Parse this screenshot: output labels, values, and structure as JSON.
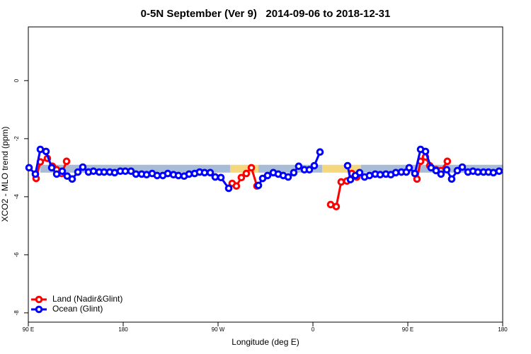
{
  "chart_data": {
    "type": "line",
    "title": "0-5N September (Ver 9)   2014-09-06 to 2018-12-31",
    "x_label": "Longitude (deg E)",
    "y_label": "XCO2 - MLO trend (ppm)",
    "xlim": [
      90,
      540
    ],
    "xticks": [
      {
        "value": 90,
        "label": "90 E"
      },
      180,
      {
        "value": 270,
        "label": "90 W"
      },
      {
        "value": 360,
        "label": "0"
      },
      {
        "value": 450,
        "label": "90 E"
      },
      {
        "value": 540,
        "label": "180"
      }
    ],
    "ylim": [
      -8.32,
      1.85
    ],
    "yticks": [
      -8,
      -6,
      -4,
      -2,
      0
    ],
    "band_ylim": [
      -3.17,
      -2.9
    ],
    "bands": [
      {
        "xlim": [
          101.4,
          281.4
        ],
        "color": "#a8bcd8"
      },
      {
        "xlim": [
          281.4,
          308.3
        ],
        "color": "#f5d77e"
      },
      {
        "xlim": [
          308.3,
          368.7
        ],
        "color": "#a8bcd8"
      },
      {
        "xlim": [
          368.7,
          405.6
        ],
        "color": "#f5d77e"
      },
      {
        "xlim": [
          405.6,
          540
        ],
        "color": "#a8bcd8"
      }
    ],
    "legend": "bottom-left",
    "series": [
      {
        "name": "Land (Nadir&Glint)",
        "color": "#ff0000",
        "x": [
          97.4,
          101.4,
          108.1,
          112.8,
          116.9,
          121.6,
          126.3,
          200,
          283.4,
          287.4,
          292.1,
          296.8,
          301.6,
          306.9,
          380,
          376.8,
          382.1,
          386.8,
          392.2,
          396.9,
          401.6,
          430,
          458.7,
          462.1,
          466.8,
          470.8,
          476.8,
          481.5,
          487.5
        ],
        "values": [
          -3.37,
          -2.8,
          -2.68,
          -2.95,
          -3.07,
          -3.2,
          -2.78,
          null,
          -3.54,
          -3.63,
          -3.34,
          -3.2,
          -3.0,
          -3.63,
          null,
          -4.27,
          -4.34,
          -3.49,
          -3.46,
          -3.2,
          -3.32,
          null,
          -3.39,
          -2.78,
          -2.63,
          -2.93,
          -3.07,
          -3.1,
          -2.78
        ]
      },
      {
        "name": "Ocean (Glint)",
        "color": "#0000ff",
        "x": [
          90.7,
          96.7,
          101.4,
          106.8,
          112.2,
          116.9,
          122.2,
          126.9,
          131.6,
          137.0,
          141.7,
          147.1,
          151.8,
          157.2,
          161.9,
          167.2,
          171.9,
          177.3,
          182.0,
          187.4,
          192.1,
          197.5,
          202.2,
          207.5,
          212.2,
          217.6,
          222.3,
          227.7,
          232.4,
          237.8,
          242.5,
          247.8,
          252.5,
          257.2,
          262.6,
          267.3,
          272.7,
          280.1,
          300,
          308.3,
          312.3,
          317.0,
          322.4,
          327.1,
          331.8,
          336.5,
          341.8,
          346.5,
          351.9,
          356.6,
          361.3,
          366.7,
          385,
          392.9,
          395.6,
          400.3,
          404.3,
          409.0,
          413.7,
          419.1,
          423.8,
          429.2,
          433.9,
          438.6,
          443.9,
          448.6,
          451.3,
          456.7,
          462.1,
          466.8,
          472.1,
          476.8,
          481.5,
          486.9,
          491.6,
          497.0,
          501.7,
          507.1,
          511.8,
          516.5,
          521.8,
          526.5,
          531.2,
          536.6
        ],
        "values": [
          -3.0,
          -3.22,
          -2.37,
          -2.44,
          -3.0,
          -3.22,
          -3.12,
          -3.29,
          -3.39,
          -3.15,
          -2.98,
          -3.15,
          -3.12,
          -3.15,
          -3.15,
          -3.15,
          -3.17,
          -3.12,
          -3.12,
          -3.12,
          -3.22,
          -3.22,
          -3.24,
          -3.2,
          -3.27,
          -3.27,
          -3.2,
          -3.24,
          -3.27,
          -3.29,
          -3.22,
          -3.2,
          -3.15,
          -3.17,
          -3.17,
          -3.32,
          -3.34,
          -3.71,
          null,
          -3.61,
          -3.37,
          -3.27,
          -3.17,
          -3.22,
          -3.27,
          -3.32,
          -3.17,
          -2.95,
          -3.07,
          -3.07,
          -2.93,
          -2.46,
          null,
          -2.93,
          -3.41,
          -3.27,
          -3.17,
          -3.32,
          -3.27,
          -3.22,
          -3.24,
          -3.22,
          -3.24,
          -3.17,
          -3.15,
          -3.15,
          -3.0,
          -3.2,
          -2.37,
          -2.44,
          -3.0,
          -3.1,
          -3.22,
          -3.07,
          -3.39,
          -3.1,
          -2.98,
          -3.15,
          -3.12,
          -3.15,
          -3.15,
          -3.15,
          -3.17,
          -3.12
        ]
      }
    ]
  }
}
